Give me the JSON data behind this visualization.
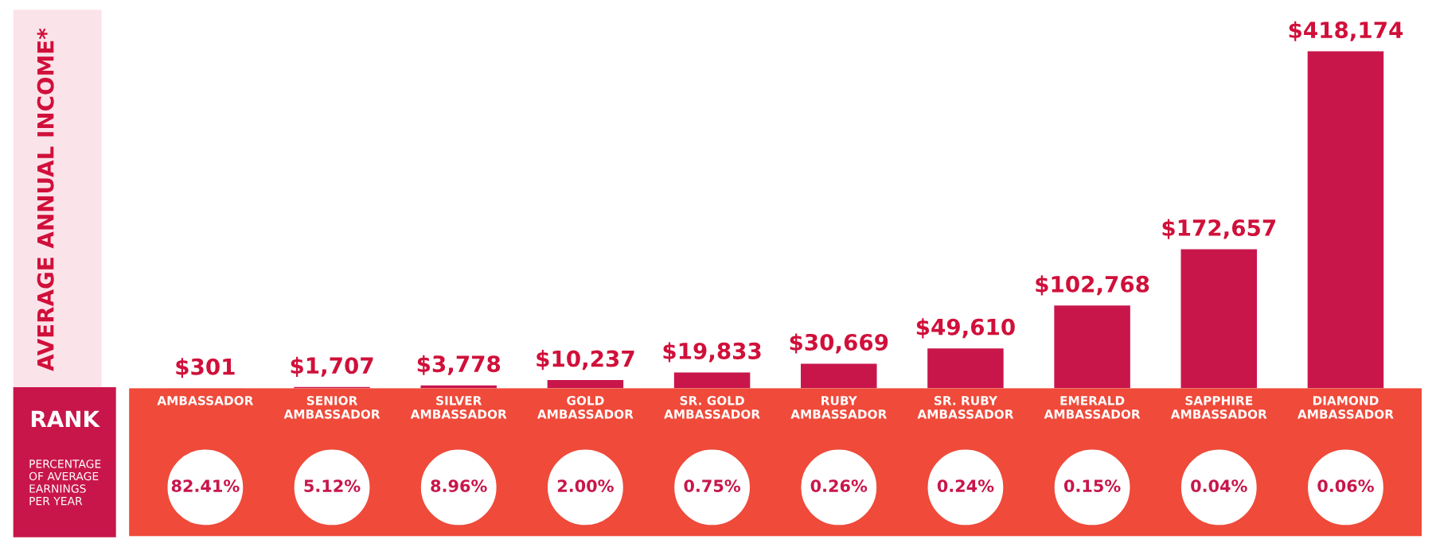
{
  "chart_data": {
    "type": "bar",
    "ylabel": "AVERAGE ANNUAL INCOME*",
    "categories": [
      "AMBASSADOR",
      "SENIOR\nAMBASSADOR",
      "SILVER\nAMBASSADOR",
      "GOLD\nAMBASSADOR",
      "SR. GOLD\nAMBASSADOR",
      "RUBY\nAMBASSADOR",
      "SR. RUBY\nAMBASSADOR",
      "EMERALD\nAMBASSADOR",
      "SAPPHIRE\nAMBASSADOR",
      "DIAMOND\nAMBASSADOR"
    ],
    "values": [
      301,
      1707,
      3778,
      10237,
      19833,
      30669,
      49610,
      102768,
      172657,
      418174
    ],
    "color": "#c8164b",
    "value_labels": [
      "$301",
      "$1,707",
      "$3,778",
      "$10,237",
      "$19,833",
      "$30,669",
      "$49,610",
      "$102,768",
      "$172,657",
      "$418,174"
    ],
    "annotations": [
      "RANK",
      "PERCENTAGE\nOF AVERAGE\nEARNINGS\nPER YEAR",
      "82.41%",
      "5.12%",
      "8.96%",
      "2.00%",
      "0.75%",
      "0.26%",
      "0.24%",
      "0.15%",
      "0.04%",
      "0.06%"
    ]
  }
}
